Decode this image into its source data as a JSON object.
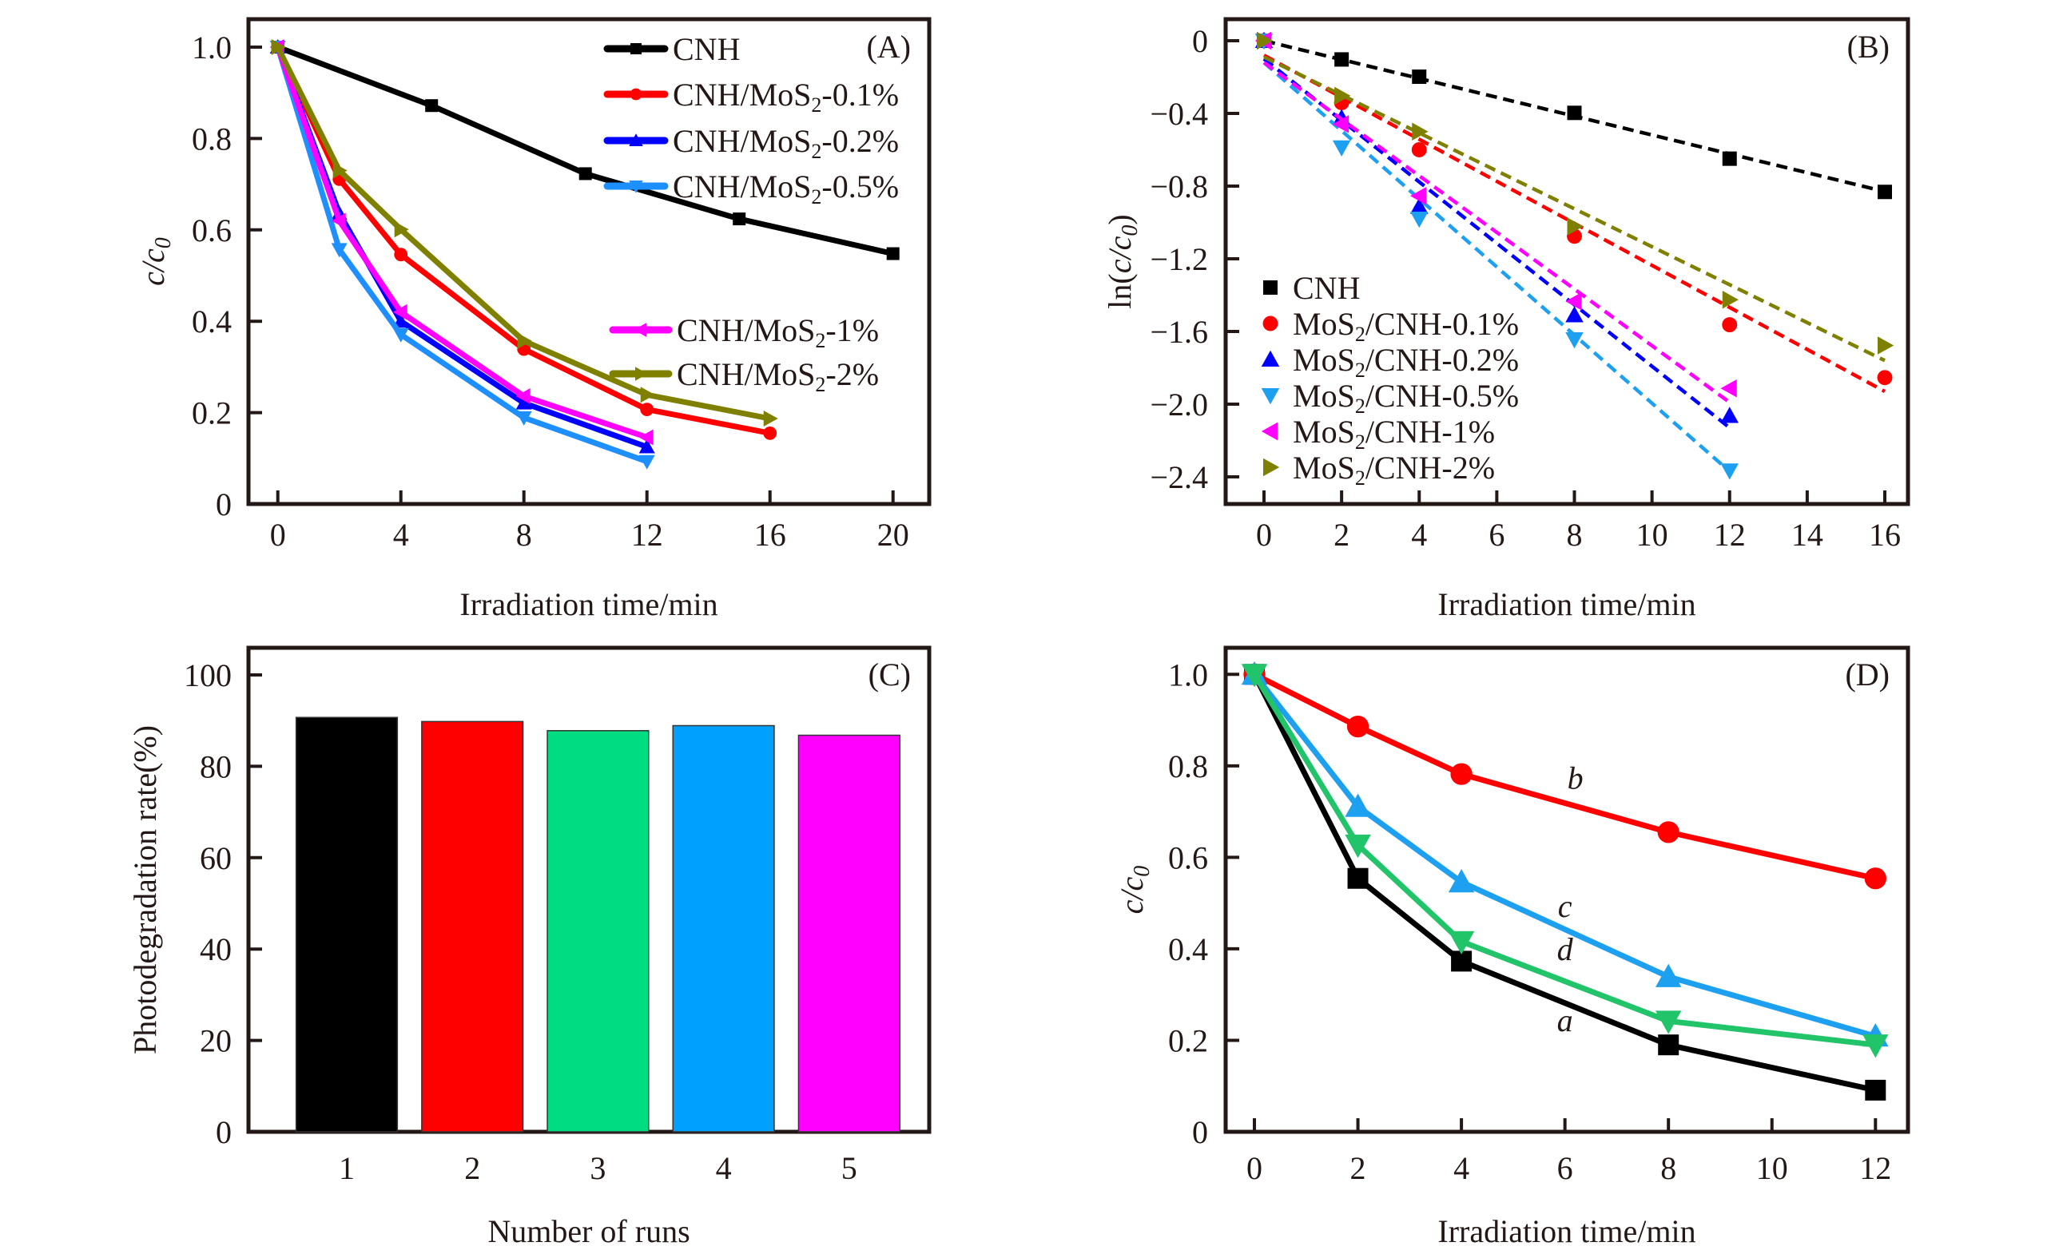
{
  "chart_data": [
    {
      "id": "A",
      "type": "line",
      "panel_label": "(A)",
      "xlabel": "Irradiation time/min",
      "ylabel": "c/c0",
      "xlim": [
        0,
        20
      ],
      "ylim": [
        0,
        1.0
      ],
      "xticks": [
        0,
        4,
        8,
        12,
        16,
        20
      ],
      "yticks": [
        0,
        0.2,
        0.4,
        0.6,
        0.8,
        1.0
      ],
      "ytick_labels": [
        "0",
        "0.2",
        "0.4",
        "0.6",
        "0.8",
        "1.0"
      ],
      "legend_position": "top-right",
      "series": [
        {
          "name": "CNH",
          "label_main": "CNH",
          "label_sub": "",
          "label_tail": "",
          "color": "#000000",
          "marker": "square",
          "x": [
            0,
            5,
            10,
            15,
            20
          ],
          "y": [
            1.0,
            0.872,
            0.723,
            0.624,
            0.548
          ]
        },
        {
          "name": "CNH/MoS2-0.1%",
          "label_main": "CNH/MoS",
          "label_sub": "2",
          "label_tail": "-0.1%",
          "color": "#ff0000",
          "marker": "circle",
          "x": [
            0,
            2,
            4,
            8,
            12,
            16
          ],
          "y": [
            1.0,
            0.711,
            0.546,
            0.339,
            0.207,
            0.155
          ]
        },
        {
          "name": "CNH/MoS2-0.2%",
          "label_main": "CNH/MoS",
          "label_sub": "2",
          "label_tail": "-0.2%",
          "color": "#0000ff",
          "marker": "triangle-up",
          "x": [
            0,
            2,
            4,
            8,
            12
          ],
          "y": [
            1.0,
            0.636,
            0.4,
            0.221,
            0.125
          ]
        },
        {
          "name": "CNH/MoS2-0.5%",
          "label_main": "CNH/MoS",
          "label_sub": "2",
          "label_tail": "-0.5%",
          "color": "#1e8fff",
          "marker": "triangle-down",
          "x": [
            0,
            2,
            4,
            8,
            12
          ],
          "y": [
            1.0,
            0.557,
            0.371,
            0.189,
            0.093
          ]
        },
        {
          "name": "CNH/MoS2-1%",
          "label_main": "CNH/MoS",
          "label_sub": "2",
          "label_tail": "-1%",
          "color": "#ff00ff",
          "marker": "triangle-left",
          "x": [
            0,
            2,
            4,
            8,
            12
          ],
          "y": [
            1.0,
            0.62,
            0.42,
            0.236,
            0.146
          ]
        },
        {
          "name": "CNH/MoS2-2%",
          "label_main": "CNH/MoS",
          "label_sub": "2",
          "label_tail": "-2%",
          "color": "#808000",
          "marker": "triangle-right",
          "x": [
            0,
            2,
            4,
            8,
            12,
            16
          ],
          "y": [
            1.0,
            0.73,
            0.601,
            0.357,
            0.239,
            0.187
          ]
        }
      ]
    },
    {
      "id": "B",
      "type": "scatter",
      "panel_label": "(B)",
      "xlabel": "Irradiation time/min",
      "ylabel": "ln(c/c0)",
      "xlim": [
        0,
        16
      ],
      "ylim": [
        -2.4,
        0
      ],
      "xticks": [
        0,
        2,
        4,
        6,
        8,
        10,
        12,
        14,
        16
      ],
      "yticks": [
        0,
        -0.4,
        -0.8,
        -1.2,
        -1.6,
        -2.0,
        -2.4
      ],
      "ytick_labels": [
        "0",
        "−0.4",
        "−0.8",
        "−1.2",
        "−1.6",
        "−2.0",
        "−2.4"
      ],
      "legend_position": "bottom-left",
      "series": [
        {
          "name": "CNH",
          "label_main": "CNH",
          "label_sub": "",
          "label_tail": "",
          "color": "#000000",
          "marker": "square",
          "x": [
            0,
            2,
            4,
            8,
            12,
            16
          ],
          "y": [
            0,
            -0.103,
            -0.198,
            -0.397,
            -0.649,
            -0.832
          ],
          "fit": {
            "x": [
              0,
              16
            ],
            "y": [
              0.0,
              -0.83
            ]
          }
        },
        {
          "name": "MoS2/CNH-0.1%",
          "label_main": "MoS",
          "label_sub": "2",
          "label_tail": "/CNH-0.1%",
          "color": "#ff0000",
          "marker": "circle",
          "x": [
            0,
            2,
            4,
            8,
            12,
            16
          ],
          "y": [
            0,
            -0.341,
            -0.6,
            -1.076,
            -1.563,
            -1.854
          ],
          "fit": {
            "x": [
              0,
              16
            ],
            "y": [
              -0.08,
              -1.93
            ]
          }
        },
        {
          "name": "MoS2/CNH-0.2%",
          "label_main": "MoS",
          "label_sub": "2",
          "label_tail": "/CNH-0.2%",
          "color": "#0000ff",
          "marker": "triangle-up",
          "x": [
            0,
            2,
            4,
            8,
            12
          ],
          "y": [
            0,
            -0.425,
            -0.913,
            -1.51,
            -2.064
          ],
          "fit": {
            "x": [
              0,
              12
            ],
            "y": [
              -0.1,
              -2.13
            ]
          }
        },
        {
          "name": "MoS2/CNH-0.5%",
          "label_main": "MoS",
          "label_sub": "2",
          "label_tail": "/CNH-0.5%",
          "color": "#1ea0f0",
          "marker": "triangle-down",
          "x": [
            0,
            2,
            4,
            8,
            12
          ],
          "y": [
            0,
            -0.588,
            -0.98,
            -1.644,
            -2.366
          ],
          "fit": {
            "x": [
              0,
              12
            ],
            "y": [
              -0.12,
              -2.37
            ]
          }
        },
        {
          "name": "MoS2/CNH-1%",
          "label_main": "MoS",
          "label_sub": "2",
          "label_tail": "/CNH-1%",
          "color": "#ff00ff",
          "marker": "triangle-left",
          "x": [
            0,
            2,
            4,
            8,
            12
          ],
          "y": [
            0,
            -0.459,
            -0.854,
            -1.434,
            -1.913
          ],
          "fit": {
            "x": [
              0,
              12
            ],
            "y": [
              -0.12,
              -1.99
            ]
          }
        },
        {
          "name": "MoS2/CNH-2%",
          "label_main": "MoS",
          "label_sub": "2",
          "label_tail": "/CNH-2%",
          "color": "#808000",
          "marker": "triangle-right",
          "x": [
            0,
            2,
            4,
            8,
            12,
            16
          ],
          "y": [
            0,
            -0.303,
            -0.5,
            -1.022,
            -1.425,
            -1.677
          ],
          "fit": {
            "x": [
              0,
              16
            ],
            "y": [
              -0.09,
              -1.76
            ]
          }
        }
      ]
    },
    {
      "id": "C",
      "type": "bar",
      "panel_label": "(C)",
      "xlabel": "Number of runs",
      "ylabel": "Photodegradation rate(%)",
      "categories": [
        "1",
        "2",
        "3",
        "4",
        "5"
      ],
      "values": [
        90.7,
        89.8,
        87.8,
        88.9,
        86.8
      ],
      "colors": [
        "#000000",
        "#ff0000",
        "#00dc82",
        "#00a0ff",
        "#ff00ff"
      ],
      "ylim": [
        0,
        100
      ],
      "yticks": [
        0,
        20,
        40,
        60,
        80,
        100
      ],
      "ytick_labels": [
        "0",
        "20",
        "40",
        "60",
        "80",
        "100"
      ]
    },
    {
      "id": "D",
      "type": "line",
      "panel_label": "(D)",
      "xlabel": "Irradiation time/min",
      "ylabel": "c/c0",
      "xlim": [
        0,
        12
      ],
      "ylim": [
        0,
        1.0
      ],
      "xticks": [
        0,
        2,
        4,
        6,
        8,
        10,
        12
      ],
      "yticks": [
        0,
        0.2,
        0.4,
        0.6,
        0.8,
        1.0
      ],
      "ytick_labels": [
        "0",
        "0.2",
        "0.4",
        "0.6",
        "0.8",
        "1.0"
      ],
      "series": [
        {
          "name": "a",
          "color": "#000000",
          "marker": "square",
          "x": [
            0,
            2,
            4,
            8,
            12
          ],
          "y": [
            1.0,
            0.554,
            0.373,
            0.19,
            0.091
          ],
          "label_pos": {
            "x": 6.0,
            "y": 0.22
          }
        },
        {
          "name": "b",
          "color": "#ff0000",
          "marker": "circle",
          "x": [
            0,
            2,
            4,
            8,
            12
          ],
          "y": [
            1.0,
            0.886,
            0.782,
            0.655,
            0.554
          ],
          "label_pos": {
            "x": 6.2,
            "y": 0.75
          }
        },
        {
          "name": "c",
          "color": "#1ea0f0",
          "marker": "triangle-up",
          "x": [
            0,
            2,
            4,
            8,
            12
          ],
          "y": [
            1.0,
            0.711,
            0.546,
            0.339,
            0.209
          ],
          "label_pos": {
            "x": 6.0,
            "y": 0.47
          }
        },
        {
          "name": "d",
          "color": "#22c46a",
          "marker": "triangle-down",
          "x": [
            0,
            2,
            4,
            8,
            12
          ],
          "y": [
            1.0,
            0.627,
            0.416,
            0.242,
            0.19
          ],
          "label_pos": {
            "x": 6.0,
            "y": 0.375
          }
        }
      ]
    }
  ]
}
